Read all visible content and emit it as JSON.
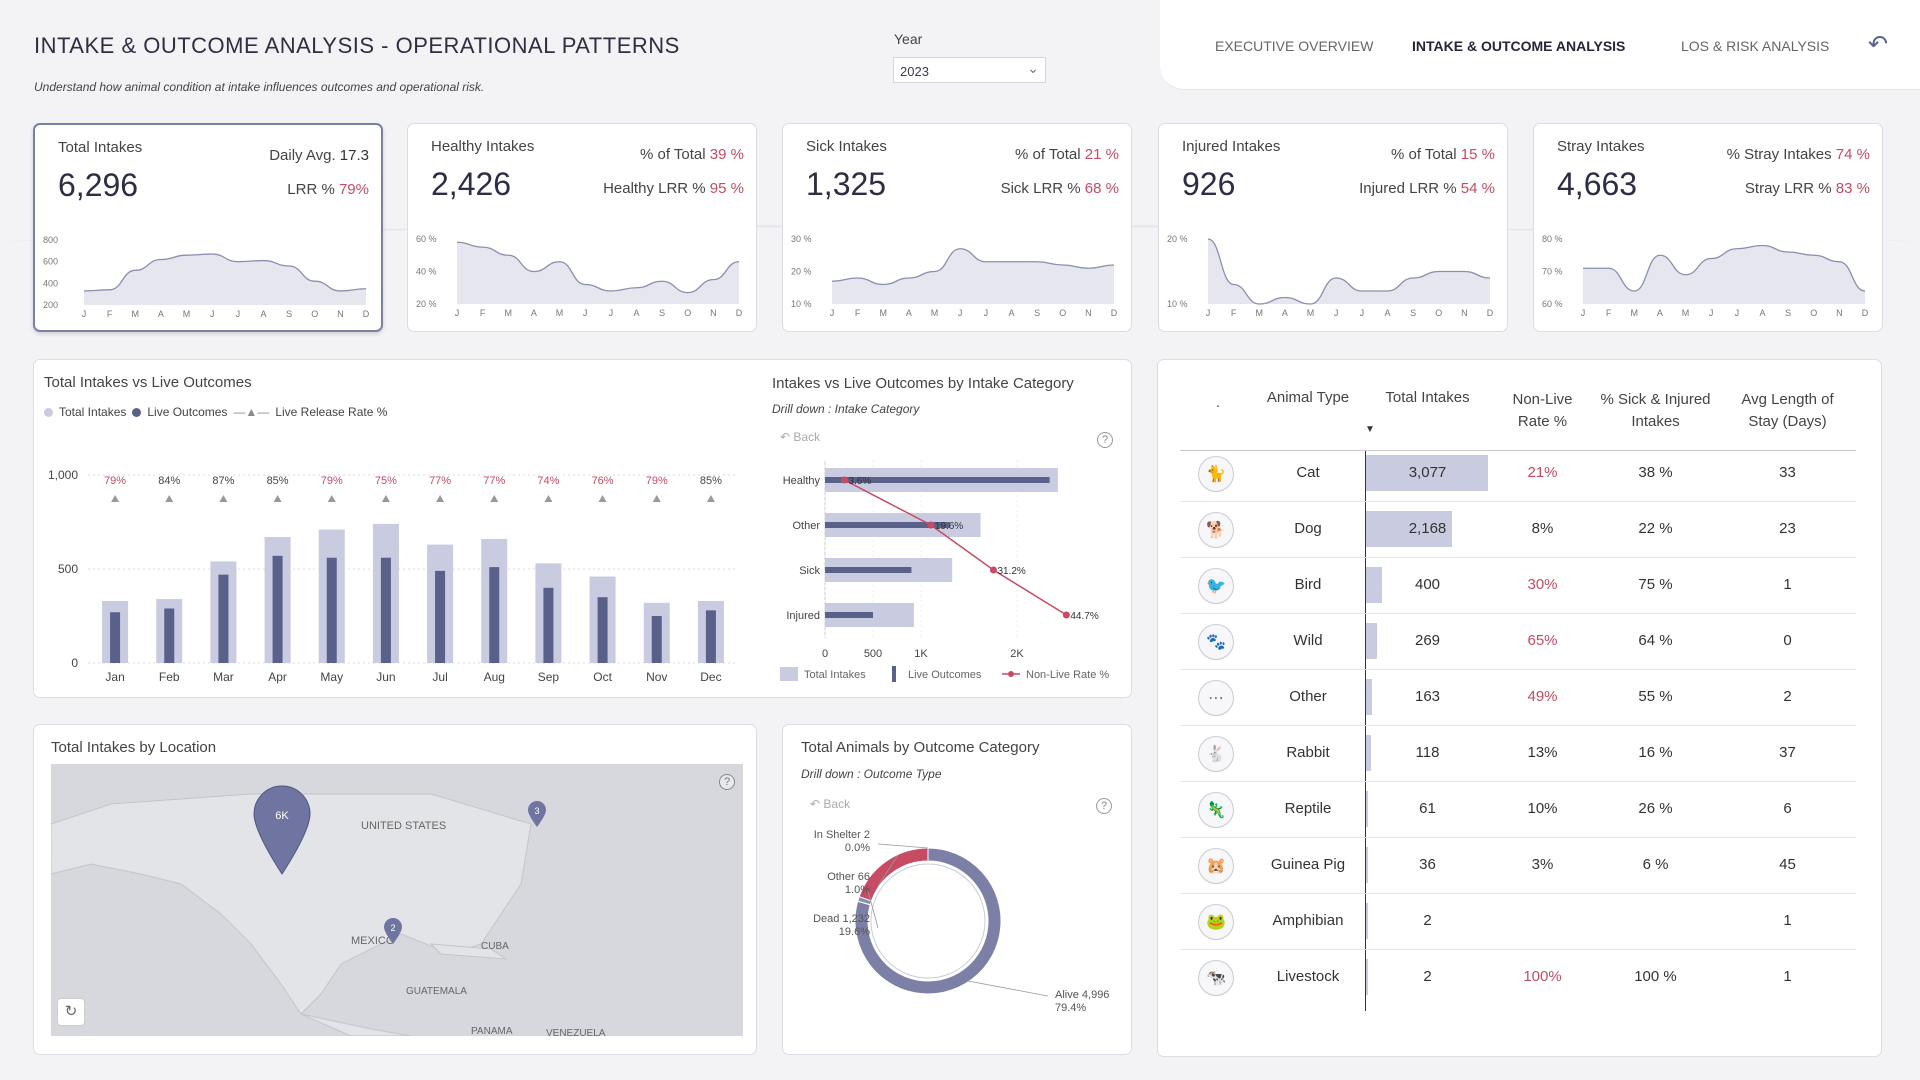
{
  "header": {
    "title": "INTAKE & OUTCOME ANALYSIS - OPERATIONAL PATTERNS",
    "subtitle": "Understand how animal condition at intake influences outcomes and operational risk.",
    "year_label": "Year",
    "year_value": "2023"
  },
  "nav": {
    "items": [
      "EXECUTIVE OVERVIEW",
      "INTAKE & OUTCOME ANALYSIS",
      "LOS & RISK ANALYSIS"
    ],
    "active": "INTAKE & OUTCOME ANALYSIS",
    "back_icon": "undo-arrow-icon"
  },
  "colors": {
    "bar_light": "#c9cbe0",
    "bar_dark": "#59608a",
    "accent_red": "#c64b63",
    "area_fill": "#e6e7ee",
    "area_line": "#8a8eb0"
  },
  "kpis": [
    {
      "label": "Total Intakes",
      "value": "6,296",
      "r1_label": "Daily Avg.",
      "r1_value": "17.3",
      "r2_label": "LRR %",
      "r2_value": "79%",
      "y_ticks": [
        "800",
        "600",
        "400",
        "200"
      ],
      "ylim": [
        200,
        800
      ],
      "spark": [
        330,
        340,
        520,
        620,
        660,
        670,
        600,
        610,
        560,
        420,
        330,
        350
      ]
    },
    {
      "label": "Healthy Intakes",
      "value": "2,426",
      "r1_label": "% of Total",
      "r1_value": "39 %",
      "r2_label": "Healthy LRR %",
      "r2_value": "95 %",
      "y_ticks": [
        "60 %",
        "40 %",
        "20 %"
      ],
      "ylim": [
        20,
        60
      ],
      "spark": [
        58,
        55,
        50,
        40,
        46,
        32,
        28,
        30,
        34,
        27,
        35,
        46
      ]
    },
    {
      "label": "Sick Intakes",
      "value": "1,325",
      "r1_label": "% of Total",
      "r1_value": "21 %",
      "r2_label": "Sick LRR %",
      "r2_value": "68 %",
      "y_ticks": [
        "30 %",
        "20 %",
        "10 %"
      ],
      "ylim": [
        10,
        30
      ],
      "spark": [
        17,
        18,
        16,
        18,
        20,
        27,
        23,
        23,
        23,
        22,
        21,
        22
      ]
    },
    {
      "label": "Injured Intakes",
      "value": "926",
      "r1_label": "% of Total",
      "r1_value": "15 %",
      "r2_label": "Injured LRR %",
      "r2_value": "54 %",
      "y_ticks": [
        "20 %",
        "10 %"
      ],
      "ylim": [
        10,
        20
      ],
      "spark": [
        20,
        13,
        10,
        11,
        10,
        14,
        12,
        12,
        14,
        15,
        15,
        14
      ]
    },
    {
      "label": "Stray Intakes",
      "value": "4,663",
      "r1_label": "% Stray Intakes",
      "r1_value": "74 %",
      "r2_label": "Stray LRR %",
      "r2_value": "83 %",
      "y_ticks": [
        "80 %",
        "70 %",
        "60 %"
      ],
      "ylim": [
        60,
        80
      ],
      "spark": [
        71,
        71,
        64,
        75,
        69,
        74,
        77,
        78,
        76,
        75,
        73,
        64
      ]
    }
  ],
  "spark_months": [
    "J",
    "F",
    "M",
    "A",
    "M",
    "J",
    "J",
    "A",
    "S",
    "O",
    "N",
    "D"
  ],
  "bar_chart": {
    "title": "Total Intakes vs Live Outcomes",
    "legend": [
      "Total Intakes",
      "Live Outcomes",
      "Live Release Rate %"
    ],
    "y_ticks": [
      "1,000",
      "500",
      "0"
    ],
    "ylim": [
      0,
      1000
    ]
  },
  "hbar": {
    "title": "Intakes vs Live Outcomes by Intake Category",
    "drill": "Drill down : Intake Category",
    "back": "Back",
    "x_ticks": [
      "0",
      "500",
      "1K",
      "2K"
    ],
    "legend": [
      "Total Intakes",
      "Live Outcomes",
      "Non-Live Rate %"
    ]
  },
  "map": {
    "title": "Total Intakes by Location",
    "pins": [
      "6K",
      "3",
      "2"
    ],
    "labels": [
      "UNITED STATES",
      "MEXICO",
      "CUBA",
      "GUATEMALA",
      "PANAMA",
      "VENEZUELA"
    ]
  },
  "donut": {
    "title": "Total Animals by Outcome Category",
    "drill": "Drill down : Outcome Type",
    "back": "Back",
    "slices": [
      {
        "name": "In Shelter",
        "count": "2",
        "pct": "0.0%",
        "value": 2
      },
      {
        "name": "Other",
        "count": "66",
        "pct": "1.0%",
        "value": 66
      },
      {
        "name": "Dead",
        "count": "1,232",
        "pct": "19.6%",
        "value": 1232
      },
      {
        "name": "Alive",
        "count": "4,996",
        "pct": "79.4%",
        "value": 4996
      }
    ]
  },
  "table": {
    "headers": [
      ".",
      "Animal Type",
      "Total Intakes",
      "Non-Live Rate %",
      "% Sick & Injured Intakes",
      "Avg Length of Stay (Days)"
    ],
    "rows": [
      {
        "icon": "cat-icon",
        "type": "Cat",
        "total": "3,077",
        "total_n": 3077,
        "nonlive": "21%",
        "red": true,
        "sick": "38 %",
        "los": "33"
      },
      {
        "icon": "dog-icon",
        "type": "Dog",
        "total": "2,168",
        "total_n": 2168,
        "nonlive": "8%",
        "red": false,
        "sick": "22 %",
        "los": "23"
      },
      {
        "icon": "bird-icon",
        "type": "Bird",
        "total": "400",
        "total_n": 400,
        "nonlive": "30%",
        "red": true,
        "sick": "75 %",
        "los": "1"
      },
      {
        "icon": "paw-icon",
        "type": "Wild",
        "total": "269",
        "total_n": 269,
        "nonlive": "65%",
        "red": true,
        "sick": "64 %",
        "los": "0"
      },
      {
        "icon": "dots-icon",
        "type": "Other",
        "total": "163",
        "total_n": 163,
        "nonlive": "49%",
        "red": true,
        "sick": "55 %",
        "los": "2"
      },
      {
        "icon": "rabbit-icon",
        "type": "Rabbit",
        "total": "118",
        "total_n": 118,
        "nonlive": "13%",
        "red": false,
        "sick": "16 %",
        "los": "37"
      },
      {
        "icon": "reptile-icon",
        "type": "Reptile",
        "total": "61",
        "total_n": 61,
        "nonlive": "10%",
        "red": false,
        "sick": "26 %",
        "los": "6"
      },
      {
        "icon": "guinea-pig-icon",
        "type": "Guinea Pig",
        "total": "36",
        "total_n": 36,
        "nonlive": "3%",
        "red": false,
        "sick": "6 %",
        "los": "45"
      },
      {
        "icon": "frog-icon",
        "type": "Amphibian",
        "total": "2",
        "total_n": 2,
        "nonlive": "",
        "red": false,
        "sick": "",
        "los": "1"
      },
      {
        "icon": "livestock-icon",
        "type": "Livestock",
        "total": "2",
        "total_n": 2,
        "nonlive": "100%",
        "red": true,
        "sick": "100 %",
        "los": "1"
      }
    ]
  },
  "chart_data": [
    {
      "type": "bar",
      "title": "Total Intakes vs Live Outcomes",
      "categories": [
        "Jan",
        "Feb",
        "Mar",
        "Apr",
        "May",
        "Jun",
        "Jul",
        "Aug",
        "Sep",
        "Oct",
        "Nov",
        "Dec"
      ],
      "series": [
        {
          "name": "Total Intakes",
          "values": [
            330,
            340,
            540,
            670,
            710,
            740,
            630,
            660,
            530,
            460,
            320,
            330
          ]
        },
        {
          "name": "Live Outcomes",
          "values": [
            270,
            290,
            470,
            570,
            560,
            560,
            490,
            510,
            400,
            350,
            250,
            280
          ]
        },
        {
          "name": "Live Release Rate %",
          "labels": [
            "79%",
            "84%",
            "87%",
            "85%",
            "79%",
            "75%",
            "77%",
            "77%",
            "74%",
            "76%",
            "79%",
            "85%"
          ],
          "red": [
            true,
            false,
            false,
            false,
            true,
            true,
            true,
            true,
            true,
            true,
            true,
            false
          ]
        }
      ],
      "ylim": [
        0,
        1000
      ]
    },
    {
      "type": "bar",
      "title": "Intakes vs Live Outcomes by Intake Category",
      "categories": [
        "Healthy",
        "Other",
        "Sick",
        "Injured"
      ],
      "series": [
        {
          "name": "Total Intakes",
          "values": [
            2426,
            1620,
            1325,
            926
          ]
        },
        {
          "name": "Live Outcomes",
          "values": [
            2340,
            1300,
            900,
            500
          ]
        },
        {
          "name": "Non-Live Rate %",
          "values": [
            3.6,
            19.6,
            31.2,
            44.7
          ],
          "labels": [
            "3.6%",
            "19.6%",
            "31.2%",
            "44.7%"
          ]
        }
      ],
      "xlim": [
        0,
        3000
      ]
    },
    {
      "type": "pie",
      "title": "Total Animals by Outcome Category",
      "categories": [
        "In Shelter",
        "Other",
        "Dead",
        "Alive"
      ],
      "values": [
        2,
        66,
        1232,
        4996
      ]
    }
  ]
}
